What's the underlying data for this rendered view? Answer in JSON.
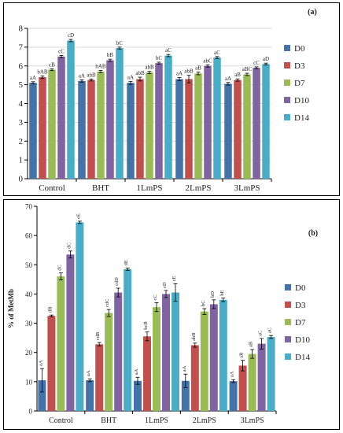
{
  "colors": {
    "D0": "#4572a7",
    "D3": "#c0504d",
    "D7": "#9bbb59",
    "D10": "#8064a2",
    "D14": "#4bacc6",
    "error_bar": "#000000",
    "grid": "#d9d9d9"
  },
  "chart_data": [
    {
      "panel_label": "(a)",
      "type": "bar",
      "categories": [
        "Control",
        "BHT",
        "1LmPS",
        "2LmPS",
        "3LmPS"
      ],
      "series": [
        {
          "name": "D0",
          "values": [
            5.1,
            5.2,
            5.1,
            5.3,
            5.05
          ],
          "errors": [
            0.06,
            0.06,
            0.08,
            0.08,
            0.07
          ],
          "labels": [
            "aA",
            "aA",
            "aA",
            "aA",
            "aA"
          ]
        },
        {
          "name": "D3",
          "values": [
            5.4,
            5.25,
            5.3,
            5.3,
            5.25
          ],
          "errors": [
            0.07,
            0.05,
            0.1,
            0.2,
            0.06
          ],
          "labels": [
            "bAB",
            "abB",
            "abB",
            "abB",
            "aB"
          ]
        },
        {
          "name": "D7",
          "values": [
            5.8,
            5.7,
            5.65,
            5.6,
            5.55
          ],
          "errors": [
            0.05,
            0.06,
            0.06,
            0.07,
            0.06
          ],
          "labels": [
            "cB",
            "bAB",
            "abB",
            "aB",
            "aBC"
          ]
        },
        {
          "name": "D10",
          "values": [
            6.5,
            6.3,
            6.15,
            6.0,
            5.9
          ],
          "errors": [
            0.06,
            0.06,
            0.05,
            0.06,
            0.05
          ],
          "labels": [
            "cC",
            "bB",
            "bC",
            "abC",
            "cC"
          ]
        },
        {
          "name": "D14",
          "values": [
            7.35,
            6.95,
            6.55,
            6.45,
            6.1
          ],
          "errors": [
            0.06,
            0.05,
            0.06,
            0.05,
            0.05
          ],
          "labels": [
            "cD",
            "bC",
            "aC",
            "aC",
            "aD"
          ]
        }
      ],
      "ylim": [
        0,
        8
      ],
      "yticks": [
        0,
        1,
        2,
        3,
        4,
        5,
        6,
        7,
        8
      ],
      "ylabel": "",
      "grid": true,
      "legend_position": "right"
    },
    {
      "panel_label": "(b)",
      "type": "bar",
      "categories": [
        "Control",
        "BHT",
        "1LmPS",
        "2LmPS",
        "3LmPS"
      ],
      "series": [
        {
          "name": "D0",
          "values": [
            10.5,
            10.5,
            10.3,
            10.3,
            10.2
          ],
          "errors": [
            4.0,
            0.5,
            1.2,
            2.3,
            0.5
          ],
          "labels": [
            "aA",
            "aA",
            "aA",
            "aA",
            "aA"
          ]
        },
        {
          "name": "D3",
          "values": [
            32.5,
            22.8,
            25.5,
            22.5,
            15.5
          ],
          "errors": [
            0.3,
            0.6,
            1.5,
            0.7,
            1.8
          ],
          "labels": [
            "dB",
            "cdB",
            "bcB",
            "abB",
            "aB"
          ]
        },
        {
          "name": "D7",
          "values": [
            46.0,
            33.5,
            35.5,
            34.0,
            19.5
          ],
          "errors": [
            1.2,
            1.2,
            1.5,
            1.0,
            1.5
          ],
          "labels": [
            "dC",
            "cdC",
            "cC",
            "bC",
            "aB"
          ]
        },
        {
          "name": "D10",
          "values": [
            53.5,
            40.5,
            40.0,
            36.5,
            23.0
          ],
          "errors": [
            1.2,
            1.5,
            1.2,
            1.5,
            1.8
          ],
          "labels": [
            "dC",
            "cdD",
            "cD",
            "bD",
            "aC"
          ]
        },
        {
          "name": "D14",
          "values": [
            64.5,
            48.5,
            40.5,
            38.0,
            25.3
          ],
          "errors": [
            0.4,
            0.4,
            3.0,
            0.6,
            0.5
          ],
          "labels": [
            "eE",
            "dE",
            "cE",
            "bE",
            "aC"
          ]
        }
      ],
      "ylim": [
        0,
        70
      ],
      "yticks": [
        0,
        10,
        20,
        30,
        40,
        50,
        60,
        70
      ],
      "ylabel": "% of MetMb",
      "grid": false,
      "legend_position": "right"
    }
  ]
}
